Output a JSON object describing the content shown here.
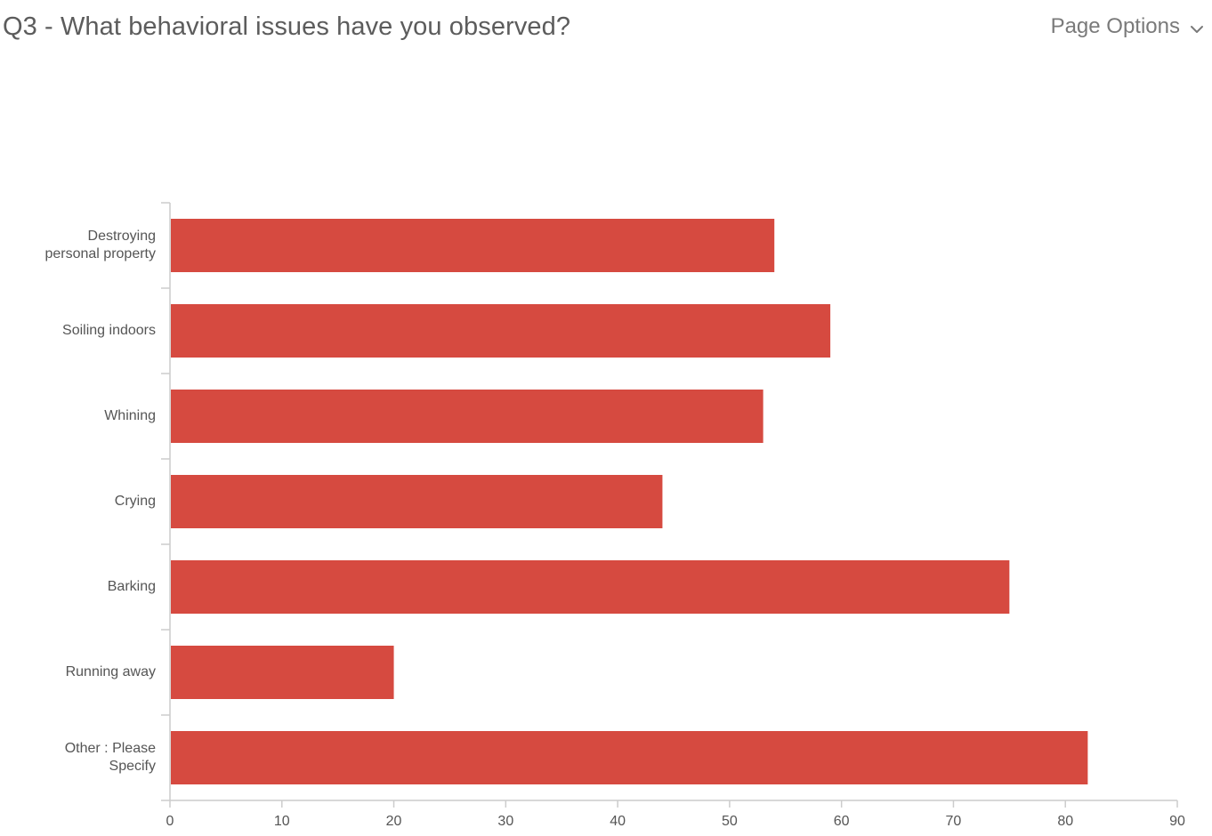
{
  "header": {
    "title": "Q3 - What behavioral issues have you observed?",
    "page_options_label": "Page Options",
    "page_options_icon": "chevron-down-icon"
  },
  "colors": {
    "bar": "#d64a40",
    "axis": "#cccccc",
    "text": "#555555"
  },
  "chart_data": {
    "type": "bar",
    "orientation": "horizontal",
    "title": "",
    "xlabel": "",
    "ylabel": "",
    "categories": [
      [
        "Destroying",
        "personal property"
      ],
      [
        "Soiling indoors"
      ],
      [
        "Whining"
      ],
      [
        "Crying"
      ],
      [
        "Barking"
      ],
      [
        "Running away"
      ],
      [
        "Other : Please",
        "Specify"
      ]
    ],
    "values": [
      54,
      59,
      53,
      44,
      75,
      20,
      82
    ],
    "xlim": [
      0,
      90
    ],
    "xticks": [
      0,
      10,
      20,
      30,
      40,
      50,
      60,
      70,
      80,
      90
    ],
    "grid": false,
    "legend": "none"
  }
}
